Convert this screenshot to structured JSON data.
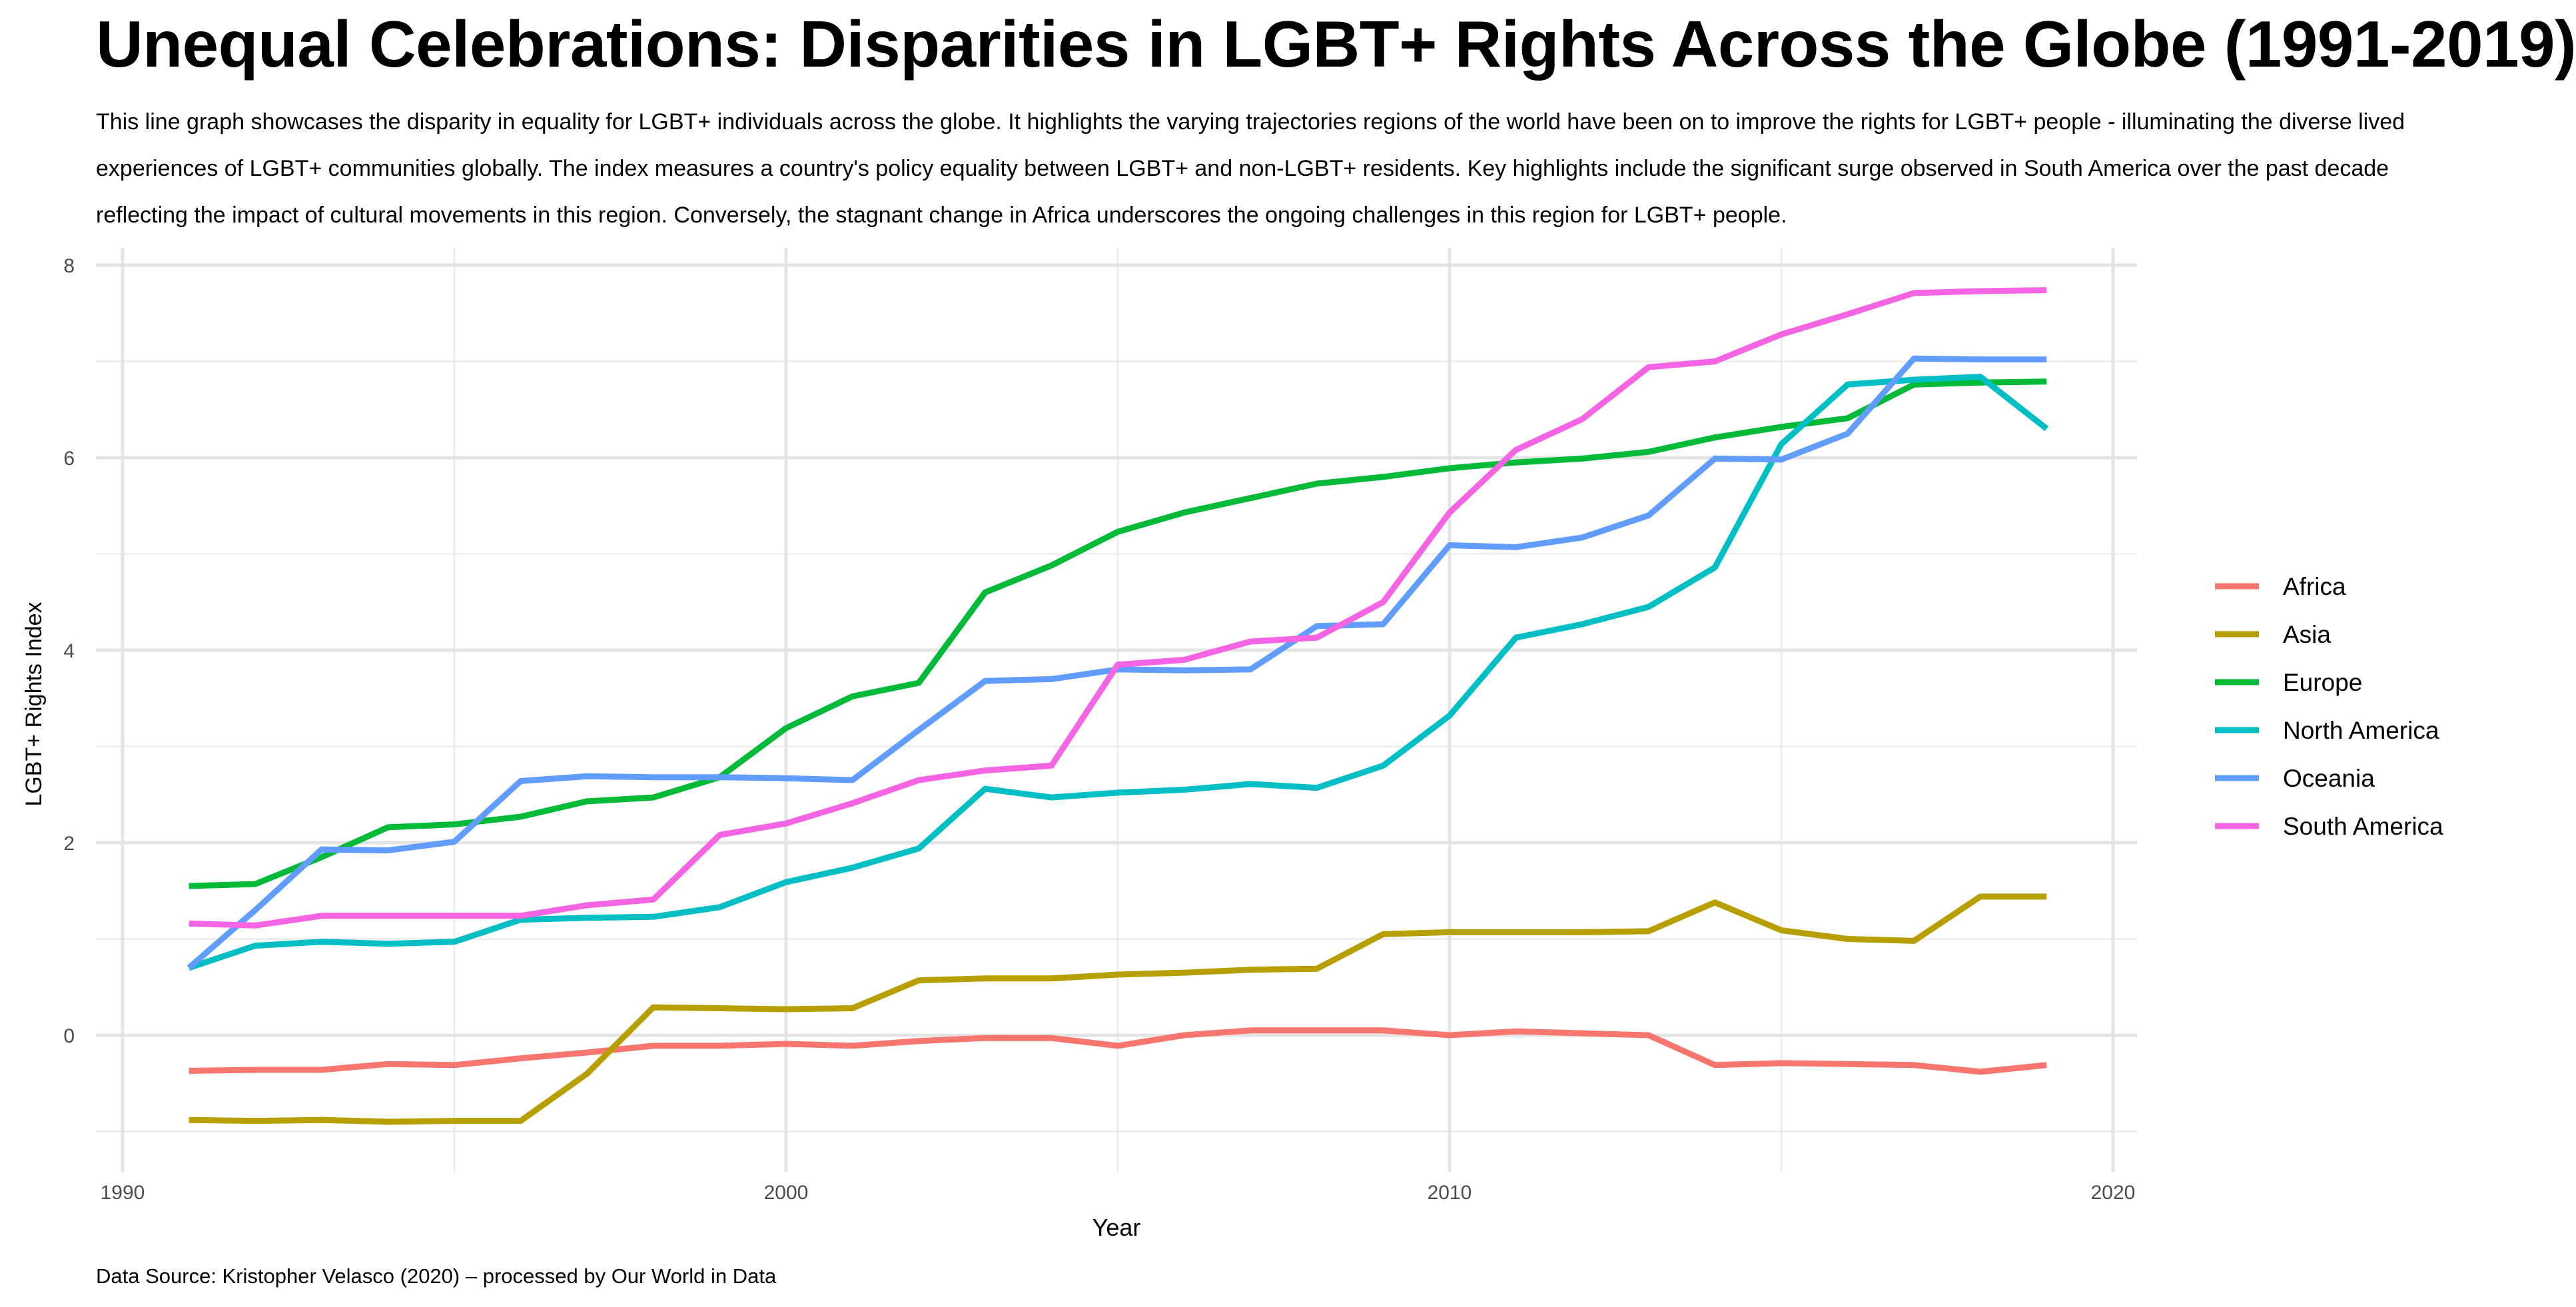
{
  "title": "Unequal Celebrations: Disparities in LGBT+ Rights Across the Globe (1991-2019)",
  "subtitle": "This line graph showcases the disparity in equality for LGBT+ individuals across the globe. It highlights the varying trajectories regions of the world have been on to improve the rights for LGBT+ people - illuminating the diverse lived experiences of LGBT+ communities globally. The index measures a country's policy equality between LGBT+ and non-LGBT+ residents. Key highlights include the significant surge observed in South America over the past decade reflecting the impact of cultural movements in this region. Conversely, the stagnant change in Africa underscores the ongoing challenges in this region for LGBT+ people.",
  "caption": "Data Source: Kristopher Velasco (2020) – processed by Our World in Data",
  "chart_data": {
    "type": "line",
    "xlabel": "Year",
    "ylabel": "LGBT+ Rights Index",
    "xlim": [
      1990,
      2020
    ],
    "ylim": [
      -1,
      8
    ],
    "xticks": [
      1990,
      2000,
      2010,
      2020
    ],
    "yticks": [
      0,
      2,
      4,
      6,
      8
    ],
    "grid": true,
    "legend_position": "right",
    "x": [
      1991,
      1992,
      1993,
      1994,
      1995,
      1996,
      1997,
      1998,
      1999,
      2000,
      2001,
      2002,
      2003,
      2004,
      2005,
      2006,
      2007,
      2008,
      2009,
      2010,
      2011,
      2012,
      2013,
      2014,
      2015,
      2016,
      2017,
      2018,
      2019
    ],
    "series": [
      {
        "name": "Africa",
        "color": "#F8766D",
        "values": [
          -0.37,
          -0.36,
          -0.36,
          -0.3,
          -0.31,
          -0.24,
          -0.18,
          -0.11,
          -0.11,
          -0.09,
          -0.11,
          -0.06,
          -0.03,
          -0.03,
          -0.11,
          0.0,
          0.05,
          0.05,
          0.05,
          0.0,
          0.04,
          0.02,
          0.0,
          -0.31,
          -0.29,
          -0.3,
          -0.31,
          -0.38,
          -0.31
        ]
      },
      {
        "name": "Asia",
        "color": "#B79F00",
        "values": [
          -0.88,
          -0.89,
          -0.88,
          -0.9,
          -0.89,
          -0.89,
          -0.4,
          0.29,
          0.28,
          0.27,
          0.28,
          0.57,
          0.59,
          0.59,
          0.63,
          0.65,
          0.68,
          0.69,
          1.05,
          1.07,
          1.07,
          1.07,
          1.08,
          1.38,
          1.09,
          1.0,
          0.98,
          1.44,
          1.44
        ]
      },
      {
        "name": "Europe",
        "color": "#00BA38",
        "values": [
          1.55,
          1.57,
          1.85,
          2.16,
          2.19,
          2.27,
          2.43,
          2.47,
          2.68,
          3.19,
          3.52,
          3.66,
          4.6,
          4.88,
          5.23,
          5.43,
          5.58,
          5.73,
          5.8,
          5.89,
          5.95,
          5.99,
          6.06,
          6.21,
          6.32,
          6.41,
          6.76,
          6.78,
          6.79
        ]
      },
      {
        "name": "North America",
        "color": "#00BFC4",
        "values": [
          0.7,
          0.93,
          0.97,
          0.95,
          0.97,
          1.2,
          1.22,
          1.23,
          1.33,
          1.59,
          1.74,
          1.94,
          2.56,
          2.47,
          2.52,
          2.55,
          2.61,
          2.57,
          2.8,
          3.32,
          4.13,
          4.27,
          4.45,
          4.86,
          6.14,
          6.76,
          6.81,
          6.84,
          6.3
        ]
      },
      {
        "name": "Oceania",
        "color": "#619CFF",
        "values": [
          0.7,
          1.3,
          1.93,
          1.92,
          2.01,
          2.64,
          2.69,
          2.68,
          2.68,
          2.67,
          2.65,
          3.17,
          3.68,
          3.7,
          3.8,
          3.79,
          3.8,
          4.25,
          4.27,
          5.09,
          5.07,
          5.17,
          5.4,
          5.99,
          5.98,
          6.25,
          7.03,
          7.02,
          7.02
        ]
      },
      {
        "name": "South America",
        "color": "#F564E3",
        "values": [
          1.16,
          1.14,
          1.24,
          1.24,
          1.24,
          1.24,
          1.35,
          1.41,
          2.08,
          2.2,
          2.41,
          2.65,
          2.75,
          2.8,
          3.85,
          3.9,
          4.09,
          4.13,
          4.5,
          5.43,
          6.08,
          6.4,
          6.94,
          7.0,
          7.28,
          7.49,
          7.71,
          7.73,
          7.74
        ]
      }
    ]
  }
}
